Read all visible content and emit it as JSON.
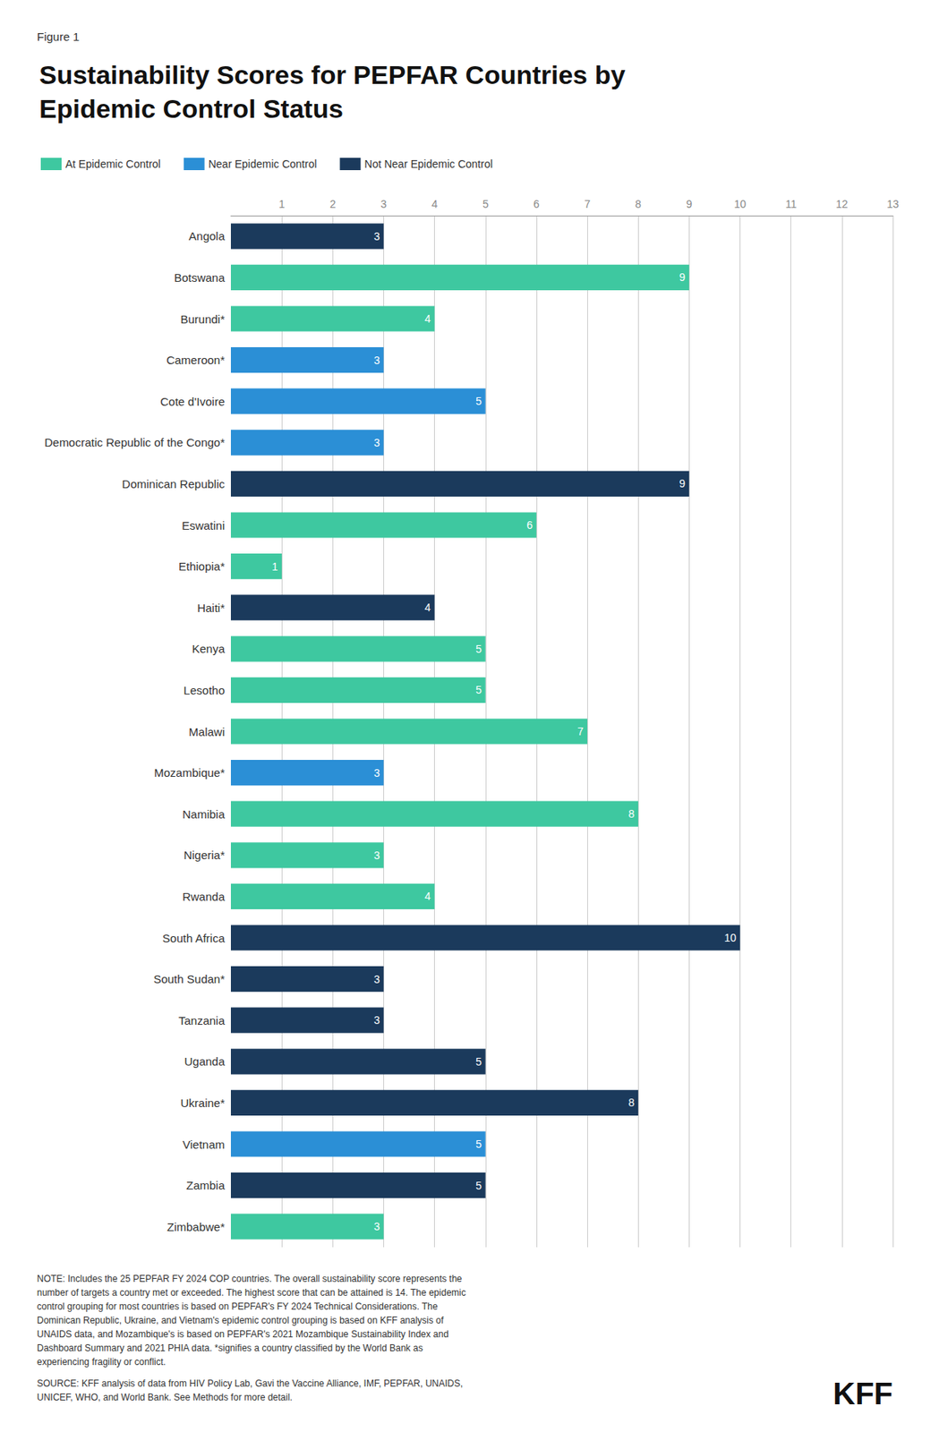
{
  "chart_data": {
    "type": "bar",
    "orientation": "horizontal",
    "title": "Sustainability Scores for PEPFAR Countries by\nEpidemic Control Status",
    "annotations": [
      "Figure 1",
      "NOTE: Includes the 25 PEPFAR FY 2024 COP countries. The overall sustainability score represents the\nnumber of targets a country met or exceeded. The highest score that can be attained is 14. The epidemic\ncontrol grouping for most countries is based on PEPFAR's FY 2024 Technical Considerations. The\nDominican Republic, Ukraine, and Vietnam's epidemic control grouping is based on KFF analysis of\nUNAIDS data, and Mozambique's is based on PEPFAR's 2021 Mozambique Sustainability Index and\nDashboard Summary and 2021 PHIA data. *signifies a country classified by the World Bank as\nexperiencing fragility or conflict.",
      "SOURCE: KFF analysis of data from HIV Policy Lab, Gavi the Vaccine Alliance, IMF, PEPFAR, UNAIDS,\nUNICEF, WHO, and World Bank. See Methods for more detail.",
      "KFF"
    ],
    "categories": [
      "Angola",
      "Botswana",
      "Burundi*",
      "Cameroon*",
      "Cote d'Ivoire",
      "Democratic Republic of the Congo*",
      "Dominican Republic",
      "Eswatini",
      "Ethiopia*",
      "Haiti*",
      "Kenya",
      "Lesotho",
      "Malawi",
      "Mozambique*",
      "Namibia",
      "Nigeria*",
      "Rwanda",
      "South Africa",
      "South Sudan*",
      "Tanzania",
      "Uganda",
      "Ukraine*",
      "Vietnam",
      "Zambia",
      "Zimbabwe*"
    ],
    "series": [
      {
        "name": "At Epidemic Control",
        "color": "#3EC8A0",
        "values": [
          null,
          9,
          4,
          null,
          null,
          null,
          null,
          6,
          1,
          null,
          5,
          5,
          7,
          null,
          8,
          3,
          4,
          null,
          null,
          null,
          null,
          null,
          null,
          null,
          3
        ]
      },
      {
        "name": "Near Epidemic Control",
        "color": "#2B8FD6",
        "values": [
          null,
          null,
          null,
          3,
          5,
          3,
          null,
          null,
          null,
          null,
          null,
          null,
          null,
          3,
          null,
          null,
          null,
          null,
          null,
          null,
          null,
          null,
          5,
          null,
          null
        ]
      },
      {
        "name": "Not Near Epidemic Control",
        "color": "#1B3A5C",
        "values": [
          3,
          null,
          null,
          null,
          null,
          null,
          9,
          null,
          null,
          4,
          null,
          null,
          null,
          null,
          null,
          null,
          null,
          10,
          3,
          3,
          5,
          8,
          null,
          5,
          null
        ]
      }
    ],
    "xlim": [
      0,
      13
    ],
    "xticks": [
      1,
      2,
      3,
      4,
      5,
      6,
      7,
      8,
      9,
      10,
      11,
      12,
      13
    ],
    "grid": true,
    "legend": "upper left",
    "data_labels": true
  }
}
